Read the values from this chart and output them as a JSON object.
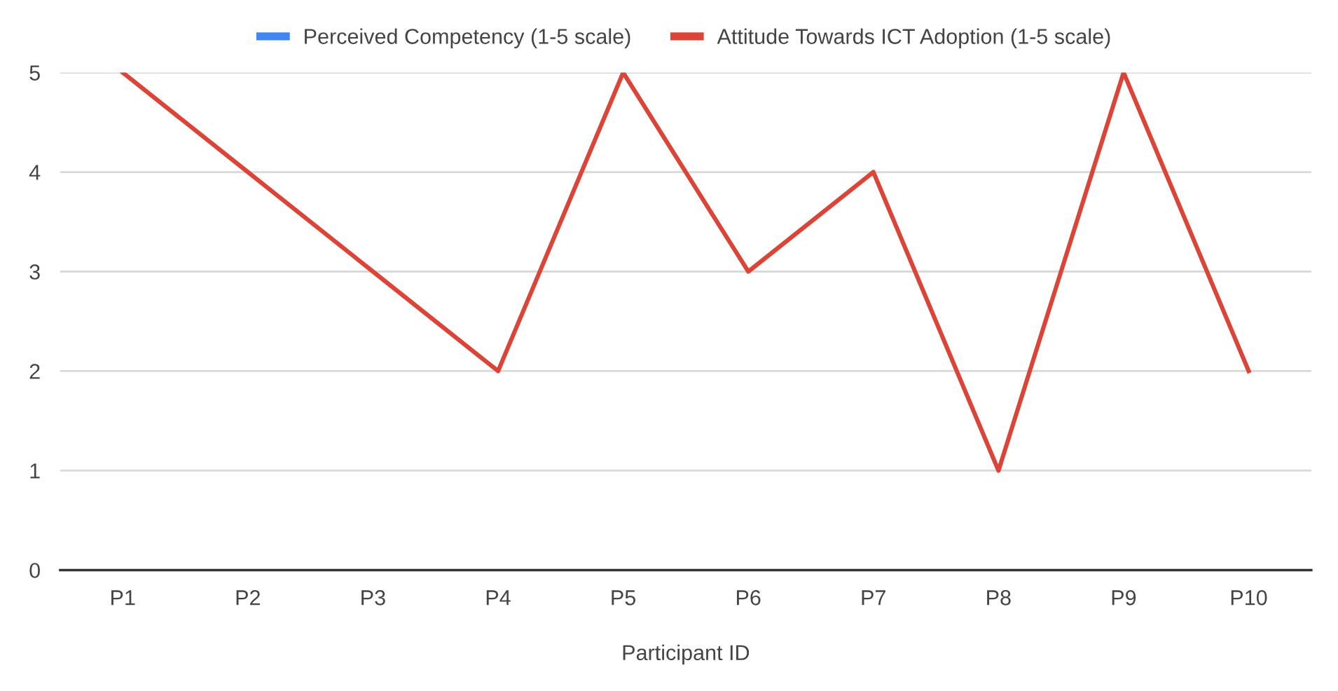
{
  "chart_data": {
    "type": "line",
    "xlabel": "Participant ID",
    "categories": [
      "P1",
      "P2",
      "P3",
      "P4",
      "P5",
      "P6",
      "P7",
      "P8",
      "P9",
      "P10"
    ],
    "series": [
      {
        "name": "Perceived Competency (1-5 scale)",
        "color": "#4285f4",
        "values": [
          null,
          null,
          null,
          null,
          null,
          null,
          null,
          null,
          null,
          null
        ]
      },
      {
        "name": "Attitude Towards ICT Adoption (1-5 scale)",
        "color": "#db4437",
        "values": [
          5,
          4,
          3,
          2,
          5,
          3,
          4,
          1,
          5,
          2
        ]
      }
    ],
    "ylim": [
      0,
      5
    ],
    "yticks": [
      0,
      1,
      2,
      3,
      4,
      5
    ],
    "grid": "y",
    "legend": "top",
    "marker": "none",
    "line_style": "solid"
  }
}
